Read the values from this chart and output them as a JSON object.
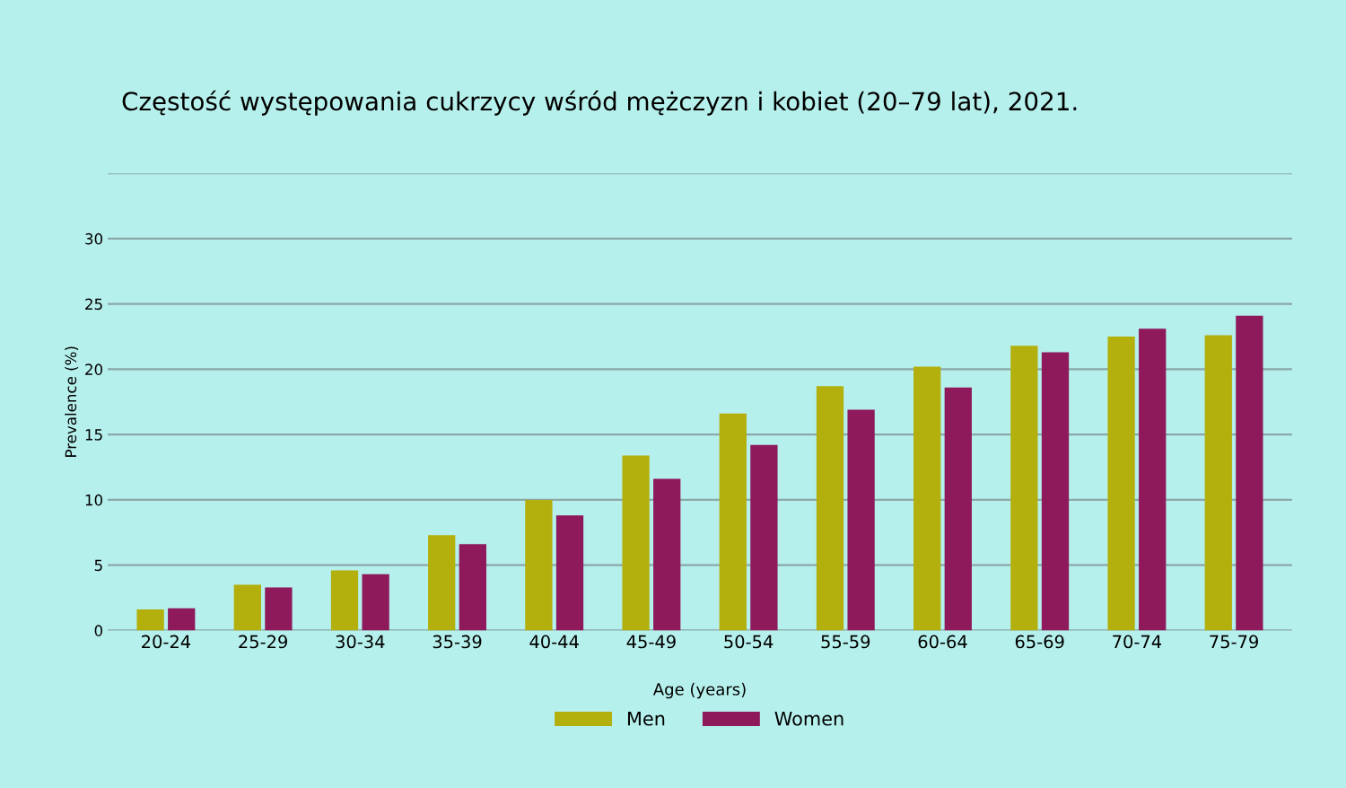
{
  "chart_data": {
    "type": "bar",
    "title": "Częstość występowania cukrzycy wśród mężczyzn i kobiet (20–79 lat), 2021.",
    "xlabel": "Age (years)",
    "ylabel": "Prevalence (%)",
    "categories": [
      "20-24",
      "25-29",
      "30-34",
      "35-39",
      "40-44",
      "45-49",
      "50-54",
      "55-59",
      "60-64",
      "65-69",
      "70-74",
      "75-79"
    ],
    "series": [
      {
        "name": "Men",
        "color": "#b3b00e",
        "values": [
          1.6,
          3.5,
          4.6,
          7.3,
          10.0,
          13.4,
          16.6,
          18.7,
          20.2,
          21.8,
          22.5,
          22.6
        ]
      },
      {
        "name": "Women",
        "color": "#8e1a5c",
        "values": [
          1.7,
          3.3,
          4.3,
          6.6,
          8.8,
          11.6,
          14.2,
          16.9,
          18.6,
          21.3,
          23.1,
          24.1
        ]
      }
    ],
    "ylim": [
      0,
      35
    ],
    "yticks": [
      0,
      5,
      10,
      15,
      20,
      25,
      30,
      {
        "value": 35,
        "label": null
      }
    ],
    "grid": "y",
    "legend": "bottom"
  }
}
